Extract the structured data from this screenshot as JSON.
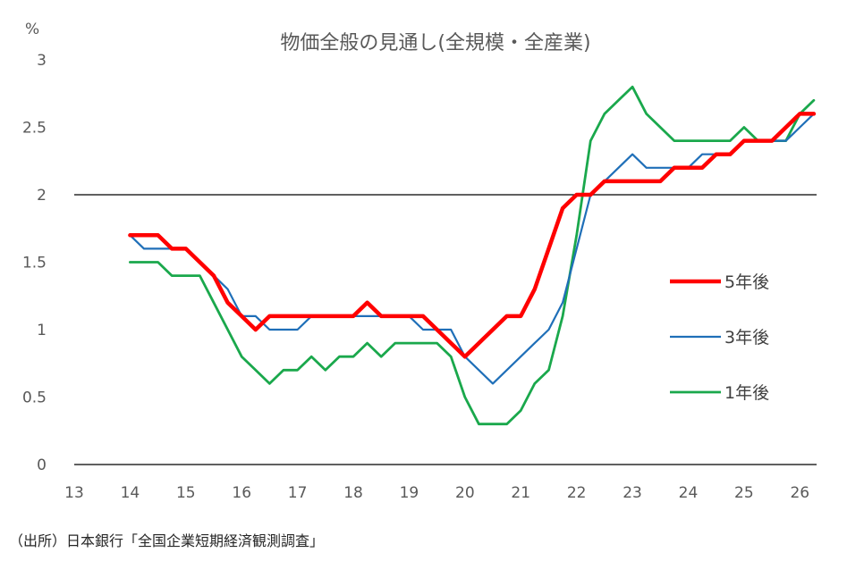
{
  "chart_data": {
    "type": "line",
    "title": "物価全般の見通し(全規模・全産業)",
    "ylabel": "%",
    "xlabel": "",
    "xlim": [
      13,
      26.3
    ],
    "ylim": [
      0,
      3
    ],
    "x_ticks": [
      13,
      14,
      15,
      16,
      17,
      18,
      19,
      20,
      21,
      22,
      23,
      24,
      25,
      26
    ],
    "y_ticks": [
      0,
      0.5,
      1,
      1.5,
      2,
      2.5,
      3
    ],
    "y_tick_labels": [
      "0",
      "0.5",
      "1",
      "1.5",
      "2",
      "2.5",
      "3"
    ],
    "reference_line": 2,
    "grid": false,
    "legend_position": "right",
    "x": [
      14,
      14.25,
      14.5,
      14.75,
      15,
      15.25,
      15.5,
      15.75,
      16,
      16.25,
      16.5,
      16.75,
      17,
      17.25,
      17.5,
      17.75,
      18,
      18.25,
      18.5,
      18.75,
      19,
      19.25,
      19.5,
      19.75,
      20,
      20.25,
      20.5,
      20.75,
      21,
      21.25,
      21.5,
      21.75,
      22,
      22.25,
      22.5,
      22.75,
      23,
      23.25,
      23.5,
      23.75,
      24,
      24.25,
      24.5,
      24.75,
      25,
      25.25,
      25.5,
      25.75,
      26,
      26.25
    ],
    "series": [
      {
        "name": "5年後",
        "color": "#ff0000",
        "width": 4.5,
        "values": [
          1.7,
          1.7,
          1.7,
          1.6,
          1.6,
          1.5,
          1.4,
          1.2,
          1.1,
          1.0,
          1.1,
          1.1,
          1.1,
          1.1,
          1.1,
          1.1,
          1.1,
          1.2,
          1.1,
          1.1,
          1.1,
          1.1,
          1.0,
          0.9,
          0.8,
          0.9,
          1.0,
          1.1,
          1.1,
          1.3,
          1.6,
          1.9,
          2.0,
          2.0,
          2.1,
          2.1,
          2.1,
          2.1,
          2.1,
          2.2,
          2.2,
          2.2,
          2.3,
          2.3,
          2.4,
          2.4,
          2.4,
          2.5,
          2.6,
          2.6
        ]
      },
      {
        "name": "3年後",
        "color": "#1f6fb8",
        "width": 2.2,
        "values": [
          1.7,
          1.6,
          1.6,
          1.6,
          1.6,
          1.5,
          1.4,
          1.3,
          1.1,
          1.1,
          1.0,
          1.0,
          1.0,
          1.1,
          1.1,
          1.1,
          1.1,
          1.1,
          1.1,
          1.1,
          1.1,
          1.0,
          1.0,
          1.0,
          0.8,
          0.7,
          0.6,
          0.7,
          0.8,
          0.9,
          1.0,
          1.2,
          1.6,
          2.0,
          2.1,
          2.2,
          2.3,
          2.2,
          2.2,
          2.2,
          2.2,
          2.3,
          2.3,
          2.3,
          2.4,
          2.4,
          2.4,
          2.4,
          2.5,
          2.6
        ]
      },
      {
        "name": "1年後",
        "color": "#1aa84c",
        "width": 2.8,
        "values": [
          1.5,
          1.5,
          1.5,
          1.4,
          1.4,
          1.4,
          1.2,
          1.0,
          0.8,
          0.7,
          0.6,
          0.7,
          0.7,
          0.8,
          0.7,
          0.8,
          0.8,
          0.9,
          0.8,
          0.9,
          0.9,
          0.9,
          0.9,
          0.8,
          0.5,
          0.3,
          0.3,
          0.3,
          0.4,
          0.6,
          0.7,
          1.1,
          1.7,
          2.4,
          2.6,
          2.7,
          2.8,
          2.6,
          2.5,
          2.4,
          2.4,
          2.4,
          2.4,
          2.4,
          2.5,
          2.4,
          2.4,
          2.4,
          2.6,
          2.7
        ]
      }
    ]
  },
  "source": "（出所）日本銀行「全国企業短期経済観測調査」"
}
